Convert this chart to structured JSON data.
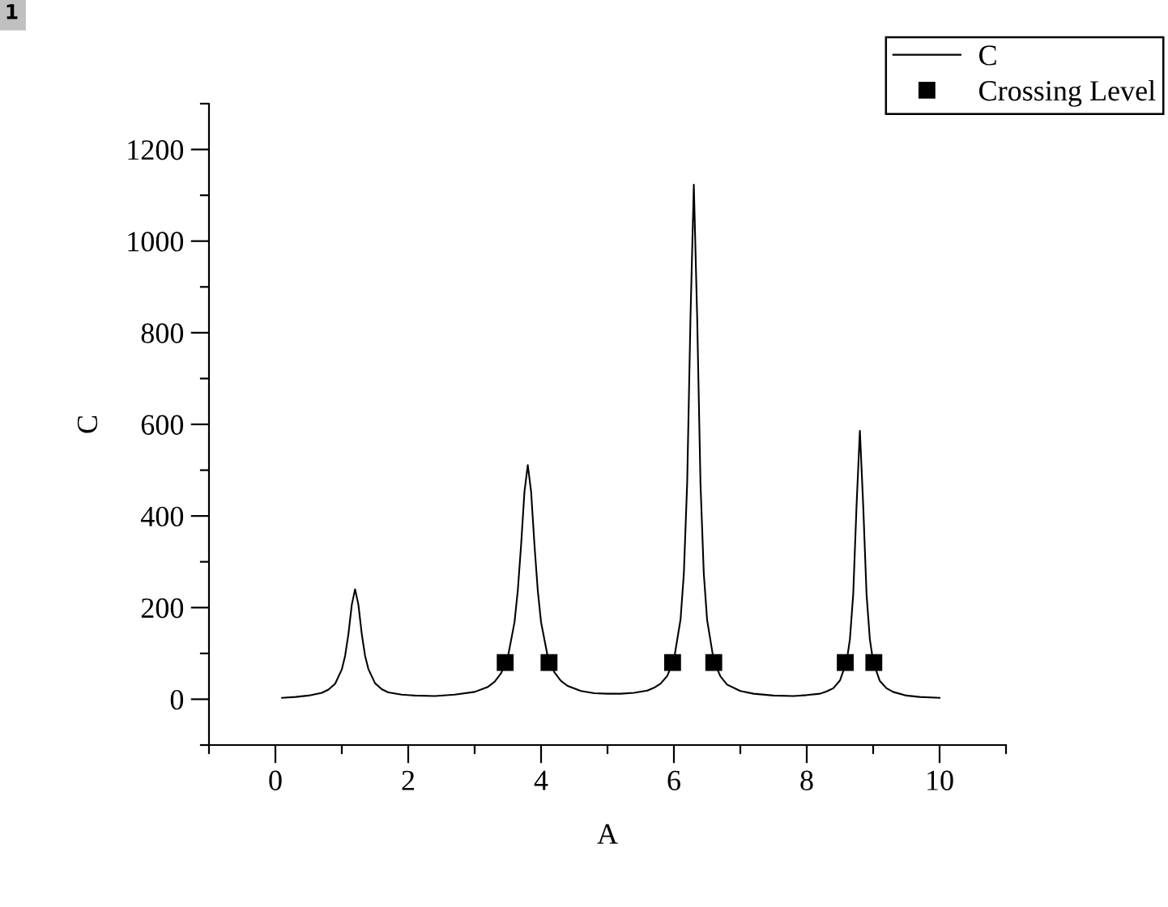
{
  "chart_data": {
    "type": "line",
    "xlabel": "A",
    "ylabel": "C",
    "annotations": [
      "1"
    ],
    "series": [
      {
        "name": "C",
        "color": "#000000",
        "x": [
          0.1,
          0.3,
          0.5,
          0.7,
          0.8,
          0.9,
          1.0,
          1.05,
          1.1,
          1.15,
          1.2,
          1.25,
          1.3,
          1.35,
          1.4,
          1.5,
          1.6,
          1.7,
          1.9,
          2.1,
          2.4,
          2.7,
          3.0,
          3.2,
          3.3,
          3.4,
          3.5,
          3.6,
          3.65,
          3.7,
          3.75,
          3.8,
          3.85,
          3.9,
          3.95,
          4.0,
          4.1,
          4.2,
          4.3,
          4.4,
          4.6,
          4.8,
          5.0,
          5.2,
          5.4,
          5.6,
          5.7,
          5.8,
          5.9,
          6.0,
          6.1,
          6.15,
          6.2,
          6.25,
          6.3,
          6.35,
          6.4,
          6.45,
          6.5,
          6.6,
          6.7,
          6.8,
          7.0,
          7.2,
          7.5,
          7.8,
          8.0,
          8.2,
          8.3,
          8.4,
          8.5,
          8.6,
          8.65,
          8.7,
          8.75,
          8.8,
          8.85,
          8.9,
          8.95,
          9.0,
          9.1,
          9.2,
          9.3,
          9.5,
          9.7,
          10.0
        ],
        "values": [
          3,
          5,
          8,
          14,
          21,
          34,
          65,
          95,
          143,
          206,
          240,
          206,
          143,
          95,
          66,
          35,
          22,
          15,
          10,
          8,
          7,
          10,
          16,
          27,
          38,
          57,
          92,
          168,
          238,
          338,
          453,
          511,
          453,
          338,
          238,
          168,
          93,
          59,
          40,
          29,
          18,
          13,
          12,
          12,
          14,
          19,
          25,
          34,
          51,
          86,
          174,
          275,
          473,
          836,
          1123,
          835,
          472,
          274,
          173,
          84,
          50,
          32,
          18,
          12,
          8,
          7,
          9,
          12,
          17,
          24,
          41,
          82,
          131,
          230,
          423,
          586,
          423,
          230,
          131,
          82,
          40,
          24,
          16,
          8,
          5,
          3
        ]
      },
      {
        "name": "Crossing Level",
        "type": "scatter",
        "color": "#000000",
        "marker": "square",
        "x": [
          3.46,
          4.12,
          5.98,
          6.6,
          8.58,
          9.01
        ],
        "values": [
          80,
          80,
          80,
          80,
          80,
          80
        ]
      }
    ],
    "xlim": [
      -1,
      11
    ],
    "xticks": [
      {
        "value": -1,
        "label": null
      },
      0,
      {
        "value": 1,
        "label": null
      },
      2,
      {
        "value": 3,
        "label": null
      },
      4,
      {
        "value": 5,
        "label": null
      },
      6,
      {
        "value": 7,
        "label": null
      },
      8,
      {
        "value": 9,
        "label": null
      },
      10,
      {
        "value": 11,
        "label": null
      }
    ],
    "ylim": [
      -100,
      1300
    ],
    "yticks": [
      {
        "value": -100,
        "label": null
      },
      0,
      {
        "value": 100,
        "label": null
      },
      200,
      {
        "value": 300,
        "label": null
      },
      400,
      {
        "value": 500,
        "label": null
      },
      600,
      {
        "value": 700,
        "label": null
      },
      800,
      {
        "value": 900,
        "label": null
      },
      1000,
      {
        "value": 1100,
        "label": null
      },
      1200,
      {
        "value": 1300,
        "label": null
      }
    ],
    "legend": "top right"
  }
}
